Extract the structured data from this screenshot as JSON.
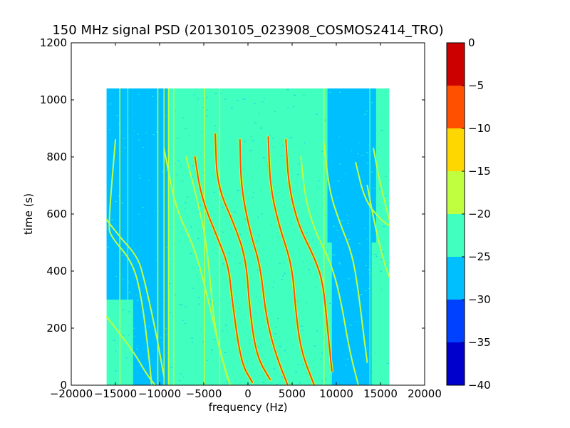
{
  "chart_data": {
    "type": "heatmap",
    "title": "150 MHz signal PSD (20130105_023908_COSMOS2414_TRO)",
    "xlabel": "frequency (Hz)",
    "ylabel": "time (s)",
    "xlim": [
      -20000,
      20000
    ],
    "ylim": [
      0,
      1200
    ],
    "x_ticks": [
      "−20000",
      "−15000",
      "−10000",
      "−5000",
      "0",
      "5000",
      "10000",
      "15000",
      "20000"
    ],
    "x_tick_values": [
      -20000,
      -15000,
      -10000,
      -5000,
      0,
      5000,
      10000,
      15000,
      20000
    ],
    "y_ticks": [
      "0",
      "200",
      "400",
      "600",
      "800",
      "1000",
      "1200"
    ],
    "y_tick_values": [
      0,
      200,
      400,
      600,
      800,
      1000,
      1200
    ],
    "data_extent": {
      "x": [
        -16000,
        16000
      ],
      "y": [
        0,
        1040
      ]
    },
    "background_level": -22.5,
    "colorbar": {
      "levels": [
        -40,
        -35,
        -30,
        -25,
        -20,
        -15,
        -10,
        -5,
        0
      ],
      "tick_labels": [
        "−40",
        "−35",
        "−30",
        "−25",
        "−20",
        "−15",
        "−10",
        "−5",
        "0"
      ],
      "colors": [
        "#0000cd",
        "#0040ff",
        "#00bfff",
        "#40ffbf",
        "#bfff40",
        "#ffd700",
        "#ff5000",
        "#cd0000"
      ]
    },
    "quiet_bands": [
      {
        "x": [
          -16000,
          -13000
        ],
        "y": [
          300,
          1040
        ],
        "level": -27.5
      },
      {
        "x": [
          -13000,
          -9000
        ],
        "y": [
          0,
          1040
        ],
        "level": -27.5
      },
      {
        "x": [
          9000,
          14500
        ],
        "y": [
          500,
          1040
        ],
        "level": -27.5
      },
      {
        "x": [
          9500,
          14000
        ],
        "y": [
          0,
          500
        ],
        "level": -27.5
      },
      {
        "x": [
          -5000,
          3000
        ],
        "y": [
          700,
          1040
        ],
        "level": -25
      }
    ],
    "vertical_lines": [
      {
        "x": -14500,
        "level": -17.5
      },
      {
        "x": -13600,
        "level": -22.5
      },
      {
        "x": -10200,
        "level": -17.5
      },
      {
        "x": -9500,
        "level": -17.5
      },
      {
        "x": -9000,
        "level": -17.5
      },
      {
        "x": -8400,
        "level": -17.5
      },
      {
        "x": -7200,
        "level": -22.5
      },
      {
        "x": -4900,
        "level": -17.5
      },
      {
        "x": -3200,
        "level": -17.5
      },
      {
        "x": 3500,
        "level": -22.5
      },
      {
        "x": 8600,
        "level": -17.5
      },
      {
        "x": 13800,
        "level": -22.5
      }
    ],
    "tracks": [
      {
        "points": [
          [
            -15000,
            860
          ],
          [
            -15800,
            560
          ],
          [
            -15500,
            520
          ],
          [
            -13000,
            430
          ],
          [
            -12000,
            300
          ],
          [
            -11200,
            100
          ],
          [
            -10900,
            0
          ]
        ],
        "level": -17.5
      },
      {
        "points": [
          [
            -16000,
            580
          ],
          [
            -14500,
            520
          ],
          [
            -12500,
            450
          ],
          [
            -11800,
            380
          ],
          [
            -10500,
            200
          ],
          [
            -9500,
            30
          ]
        ],
        "level": -17.5
      },
      {
        "points": [
          [
            -16000,
            240
          ],
          [
            -13000,
            120
          ],
          [
            -11500,
            40
          ],
          [
            -10500,
            0
          ]
        ],
        "level": -17.5
      },
      {
        "points": [
          [
            -9500,
            830
          ],
          [
            -8200,
            620
          ],
          [
            -6000,
            480
          ],
          [
            -4500,
            300
          ],
          [
            -3000,
            100
          ],
          [
            -2000,
            0
          ]
        ],
        "level": -17.5
      },
      {
        "points": [
          [
            -7000,
            800
          ],
          [
            -5500,
            620
          ],
          [
            -4600,
            480
          ],
          [
            -3800,
            200
          ],
          [
            -2500,
            40
          ],
          [
            -2000,
            0
          ]
        ],
        "level": -17.5
      },
      {
        "points": [
          [
            -6000,
            800
          ],
          [
            -5300,
            660
          ],
          [
            -3500,
            520
          ],
          [
            -2200,
            420
          ],
          [
            -1800,
            300
          ],
          [
            -800,
            80
          ],
          [
            500,
            10
          ]
        ],
        "level": -7.5
      },
      {
        "points": [
          [
            -3700,
            880
          ],
          [
            -3500,
            700
          ],
          [
            -1500,
            560
          ],
          [
            -200,
            440
          ],
          [
            200,
            260
          ],
          [
            1000,
            100
          ],
          [
            2500,
            20
          ]
        ],
        "level": -7.5
      },
      {
        "points": [
          [
            -900,
            860
          ],
          [
            -800,
            700
          ],
          [
            200,
            540
          ],
          [
            1400,
            420
          ],
          [
            2000,
            250
          ],
          [
            3000,
            120
          ],
          [
            4500,
            0
          ]
        ],
        "level": -7.5
      },
      {
        "points": [
          [
            2300,
            870
          ],
          [
            2500,
            700
          ],
          [
            3500,
            560
          ],
          [
            5000,
            420
          ],
          [
            5400,
            260
          ],
          [
            6000,
            120
          ],
          [
            7500,
            0
          ]
        ],
        "level": -7.5
      },
      {
        "points": [
          [
            4300,
            860
          ],
          [
            4600,
            700
          ],
          [
            5700,
            560
          ],
          [
            7500,
            450
          ],
          [
            8500,
            360
          ],
          [
            9000,
            200
          ],
          [
            9500,
            50
          ]
        ],
        "level": -7.5
      },
      {
        "points": [
          [
            6000,
            800
          ],
          [
            6500,
            650
          ],
          [
            7600,
            540
          ],
          [
            9500,
            420
          ],
          [
            10500,
            300
          ],
          [
            11500,
            120
          ],
          [
            12500,
            0
          ]
        ],
        "level": -17.5
      },
      {
        "points": [
          [
            8600,
            850
          ],
          [
            9200,
            680
          ],
          [
            10500,
            560
          ],
          [
            11800,
            460
          ],
          [
            12500,
            330
          ],
          [
            13000,
            200
          ],
          [
            13500,
            80
          ]
        ],
        "level": -17.5
      },
      {
        "points": [
          [
            12200,
            780
          ],
          [
            13200,
            650
          ],
          [
            15000,
            580
          ],
          [
            16000,
            560
          ]
        ],
        "level": -17.5
      },
      {
        "points": [
          [
            14200,
            830
          ],
          [
            15000,
            700
          ],
          [
            16000,
            580
          ]
        ],
        "level": -17.5
      },
      {
        "points": [
          [
            13500,
            700
          ],
          [
            14500,
            540
          ],
          [
            15500,
            420
          ],
          [
            16000,
            380
          ]
        ],
        "level": -17.5
      }
    ]
  }
}
